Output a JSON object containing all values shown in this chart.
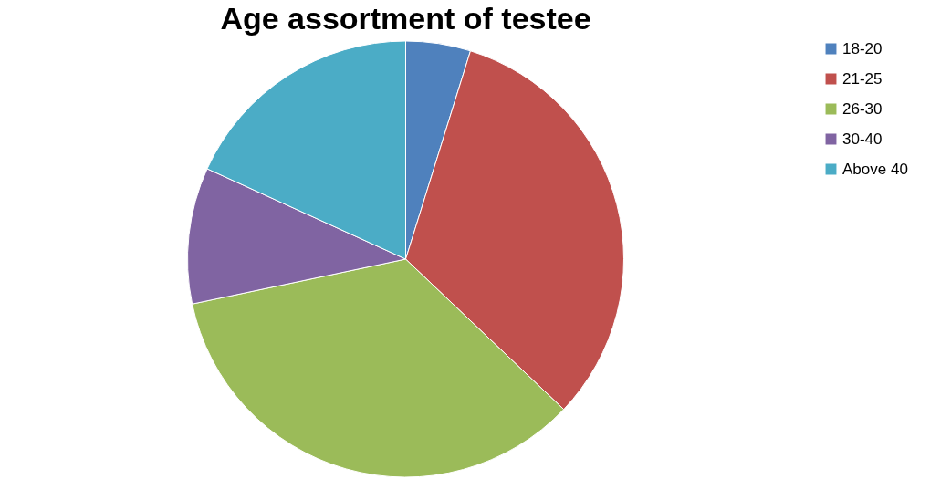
{
  "chart_data": {
    "type": "pie",
    "title": "Age assortment of testee",
    "categories": [
      "18-20",
      "21-25",
      "26-30",
      "30-40",
      "Above 40"
    ],
    "values": [
      4.8,
      32.3,
      34.6,
      10.1,
      18.2
    ],
    "colors": [
      "#4f81bd",
      "#c0504d",
      "#9bbb59",
      "#8064a2",
      "#4bacc6"
    ],
    "legend": "right"
  }
}
